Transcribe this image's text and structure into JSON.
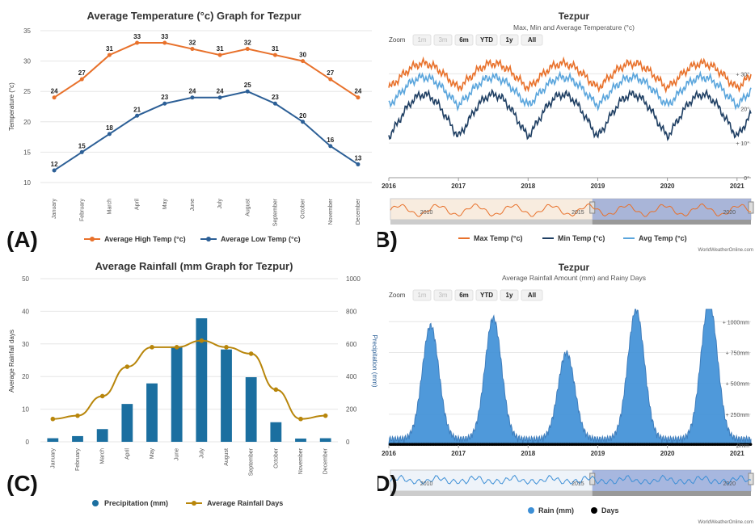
{
  "panels": {
    "A": {
      "letter": "(A)",
      "title": "Average Temperature (°c) Graph for Tezpur",
      "ylabel": "Temperature (°c)",
      "yticks": [
        "35",
        "30",
        "25",
        "20",
        "15",
        "10"
      ],
      "legend_high": "Average High Temp (°c)",
      "legend_low": "Average Low Temp (°c)"
    },
    "B": {
      "letter": "(B)",
      "title": "Tezpur",
      "subtitle": "Max, Min and Average Temperature (°c)",
      "zoom_label": "Zoom",
      "zoom_buttons": [
        "1m",
        "3m",
        "6m",
        "YTD",
        "1y",
        "All"
      ],
      "xticks": [
        "2016",
        "2017",
        "2018",
        "2019",
        "2020",
        "2021"
      ],
      "yticks": [
        "+ 30°",
        "20°",
        "+ 10°",
        "0°"
      ],
      "nav_labels": [
        "2010",
        "2015",
        "2020"
      ],
      "legend": [
        "Max Temp (°c)",
        "Min Temp (°c)",
        "Avg Temp (°c)"
      ],
      "credit": "WorldWeatherOnline.com"
    },
    "C": {
      "letter": "(C)",
      "title": "Average Rainfall (mm Graph for Tezpur)",
      "ylabel_left": "Average Rainfall days",
      "ylabel_right": "Precipitation (mm)",
      "yticks_left": [
        "50",
        "40",
        "30",
        "20",
        "10",
        "0"
      ],
      "yticks_right": [
        "1000",
        "800",
        "600",
        "400",
        "200",
        "0"
      ],
      "legend_precip": "Precipitation (mm)",
      "legend_days": "Average Rainfall Days"
    },
    "D": {
      "letter": "(D)",
      "title": "Tezpur",
      "subtitle": "Average Rainfall Amount (mm) and Rainy Days",
      "zoom_label": "Zoom",
      "zoom_buttons": [
        "1m",
        "3m",
        "6m",
        "YTD",
        "1y",
        "All"
      ],
      "xticks": [
        "2016",
        "2017",
        "2018",
        "2019",
        "2020",
        "2021"
      ],
      "yticks": [
        "+ 1000mm",
        "+ 750mm",
        "+ 500mm",
        "+ 250mm",
        "0mm"
      ],
      "nav_labels": [
        "2010",
        "2015",
        "2020"
      ],
      "legend": [
        "Rain (mm)",
        "Days"
      ],
      "credit": "WorldWeatherOnline.com"
    }
  },
  "colors": {
    "high": "#e8712b",
    "low": "#2c5f96",
    "max": "#e8712b",
    "min": "#1f3f63",
    "avg": "#5aa5dc",
    "precip_bar": "#1b6fa0",
    "days_line": "#b8860b",
    "rain_area": "#3d8fd6",
    "nav_sel": "#8fa3d6"
  },
  "chart_data": [
    {
      "type": "line",
      "panel": "A",
      "categories": [
        "January",
        "February",
        "March",
        "April",
        "May",
        "June",
        "July",
        "August",
        "September",
        "October",
        "November",
        "December"
      ],
      "series": [
        {
          "name": "Average High Temp (°c)",
          "values": [
            24,
            27,
            31,
            33,
            33,
            32,
            31,
            32,
            31,
            30,
            27,
            24
          ]
        },
        {
          "name": "Average Low Temp (°c)",
          "values": [
            12,
            15,
            18,
            21,
            23,
            24,
            24,
            25,
            23,
            20,
            16,
            13
          ]
        }
      ],
      "ylim": [
        10,
        35
      ]
    },
    {
      "type": "line",
      "panel": "B",
      "x": [
        "2016",
        "2017",
        "2018",
        "2019",
        "2020",
        "2021"
      ],
      "xlim": [
        2016.0,
        2021.2
      ],
      "series": [
        {
          "name": "Max Temp (°c)",
          "cycle": {
            "winter": 26,
            "summer": 33
          }
        },
        {
          "name": "Avg Temp (°c)",
          "cycle": {
            "winter": 21,
            "summer": 29
          }
        },
        {
          "name": "Min Temp (°c)",
          "cycle": {
            "winter": 12,
            "summer": 24
          }
        }
      ],
      "ylim": [
        0,
        35
      ]
    },
    {
      "type": "bar",
      "panel": "C",
      "categories": [
        "January",
        "February",
        "March",
        "April",
        "May",
        "June",
        "July",
        "August",
        "September",
        "October",
        "November",
        "December"
      ],
      "series": [
        {
          "name": "Precipitation (mm)",
          "axis": "right",
          "values": [
            22,
            35,
            78,
            232,
            358,
            583,
            757,
            566,
            396,
            120,
            20,
            22
          ]
        },
        {
          "name": "Average Rainfall Days",
          "axis": "left",
          "type": "line",
          "values": [
            7,
            8,
            14,
            23,
            29,
            29,
            31,
            29,
            27,
            16,
            7,
            8
          ]
        }
      ],
      "ylim_left": [
        0,
        50
      ],
      "ylim_right": [
        0,
        1000
      ]
    },
    {
      "type": "area",
      "panel": "D",
      "x": [
        "2016",
        "2017",
        "2018",
        "2019",
        "2020",
        "2021"
      ],
      "xlim": [
        2016.0,
        2021.2
      ],
      "series": [
        {
          "name": "Rain (mm)",
          "peaks": [
            {
              "x": 2016.6,
              "y": 920
            },
            {
              "x": 2017.5,
              "y": 980
            },
            {
              "x": 2018.55,
              "y": 700
            },
            {
              "x": 2019.55,
              "y": 1050
            },
            {
              "x": 2020.6,
              "y": 1110
            }
          ]
        },
        {
          "name": "Days",
          "typical": 5
        }
      ],
      "ylim": [
        0,
        1100
      ]
    }
  ]
}
